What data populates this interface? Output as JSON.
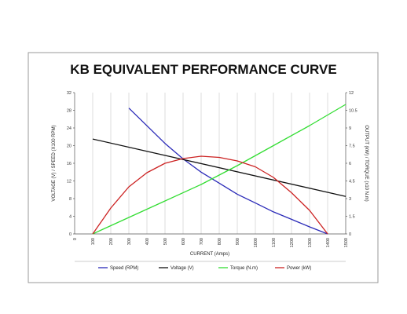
{
  "chart_data": {
    "type": "line",
    "title": "KB EQUIVALENT PERFORMANCE CURVE",
    "xlabel": "CURRENT (Amps)",
    "ylabel_left": "VOLTAGE (V) / SPEED (X100 RPM)",
    "ylabel_right": "OUTPUT (kW) / TORQUE (x10 N.m)",
    "xlim": [
      0,
      1500
    ],
    "ylim_left": [
      0,
      32
    ],
    "ylim_right": [
      0,
      12
    ],
    "x_ticks": [
      "0",
      "100",
      "200",
      "300",
      "400",
      "500",
      "600",
      "700",
      "800",
      "900",
      "1000",
      "1100",
      "1200",
      "1300",
      "1400",
      "1500"
    ],
    "y_left_ticks": [
      "0",
      "4",
      "8",
      "12",
      "16",
      "20",
      "24",
      "28",
      "32"
    ],
    "y_right_ticks": [
      "0",
      "1.5",
      "3",
      "4.5",
      "6",
      "7.5",
      "9",
      "10.5",
      "12"
    ],
    "grid": "vertical",
    "legend_position": "bottom",
    "series": [
      {
        "name": "Speed (RPM)",
        "axis": "left",
        "color": "#2a2ab8",
        "x": [
          300,
          400,
          500,
          600,
          700,
          800,
          900,
          1000,
          1100,
          1200,
          1300,
          1400
        ],
        "y": [
          28.5,
          24.5,
          20.5,
          17.0,
          14.0,
          11.5,
          9.0,
          7.0,
          5.0,
          3.3,
          1.6,
          0
        ]
      },
      {
        "name": "Voltage (V)",
        "axis": "left",
        "color": "#111111",
        "x": [
          100,
          1500
        ],
        "y": [
          21.5,
          8.5
        ]
      },
      {
        "name": "Torque (N.m)",
        "axis": "right",
        "color": "#33dd33",
        "x": [
          100,
          300,
          500,
          700,
          900,
          1100,
          1300,
          1500
        ],
        "y": [
          0,
          1.4,
          2.8,
          4.2,
          5.8,
          7.5,
          9.2,
          11.0
        ]
      },
      {
        "name": "Power (kW)",
        "axis": "right",
        "color": "#cc2222",
        "x": [
          100,
          200,
          300,
          400,
          500,
          600,
          700,
          800,
          900,
          1000,
          1100,
          1200,
          1300,
          1400
        ],
        "y": [
          0,
          2.2,
          4.0,
          5.2,
          6.0,
          6.4,
          6.6,
          6.5,
          6.2,
          5.7,
          4.8,
          3.5,
          2.0,
          0
        ]
      }
    ]
  }
}
